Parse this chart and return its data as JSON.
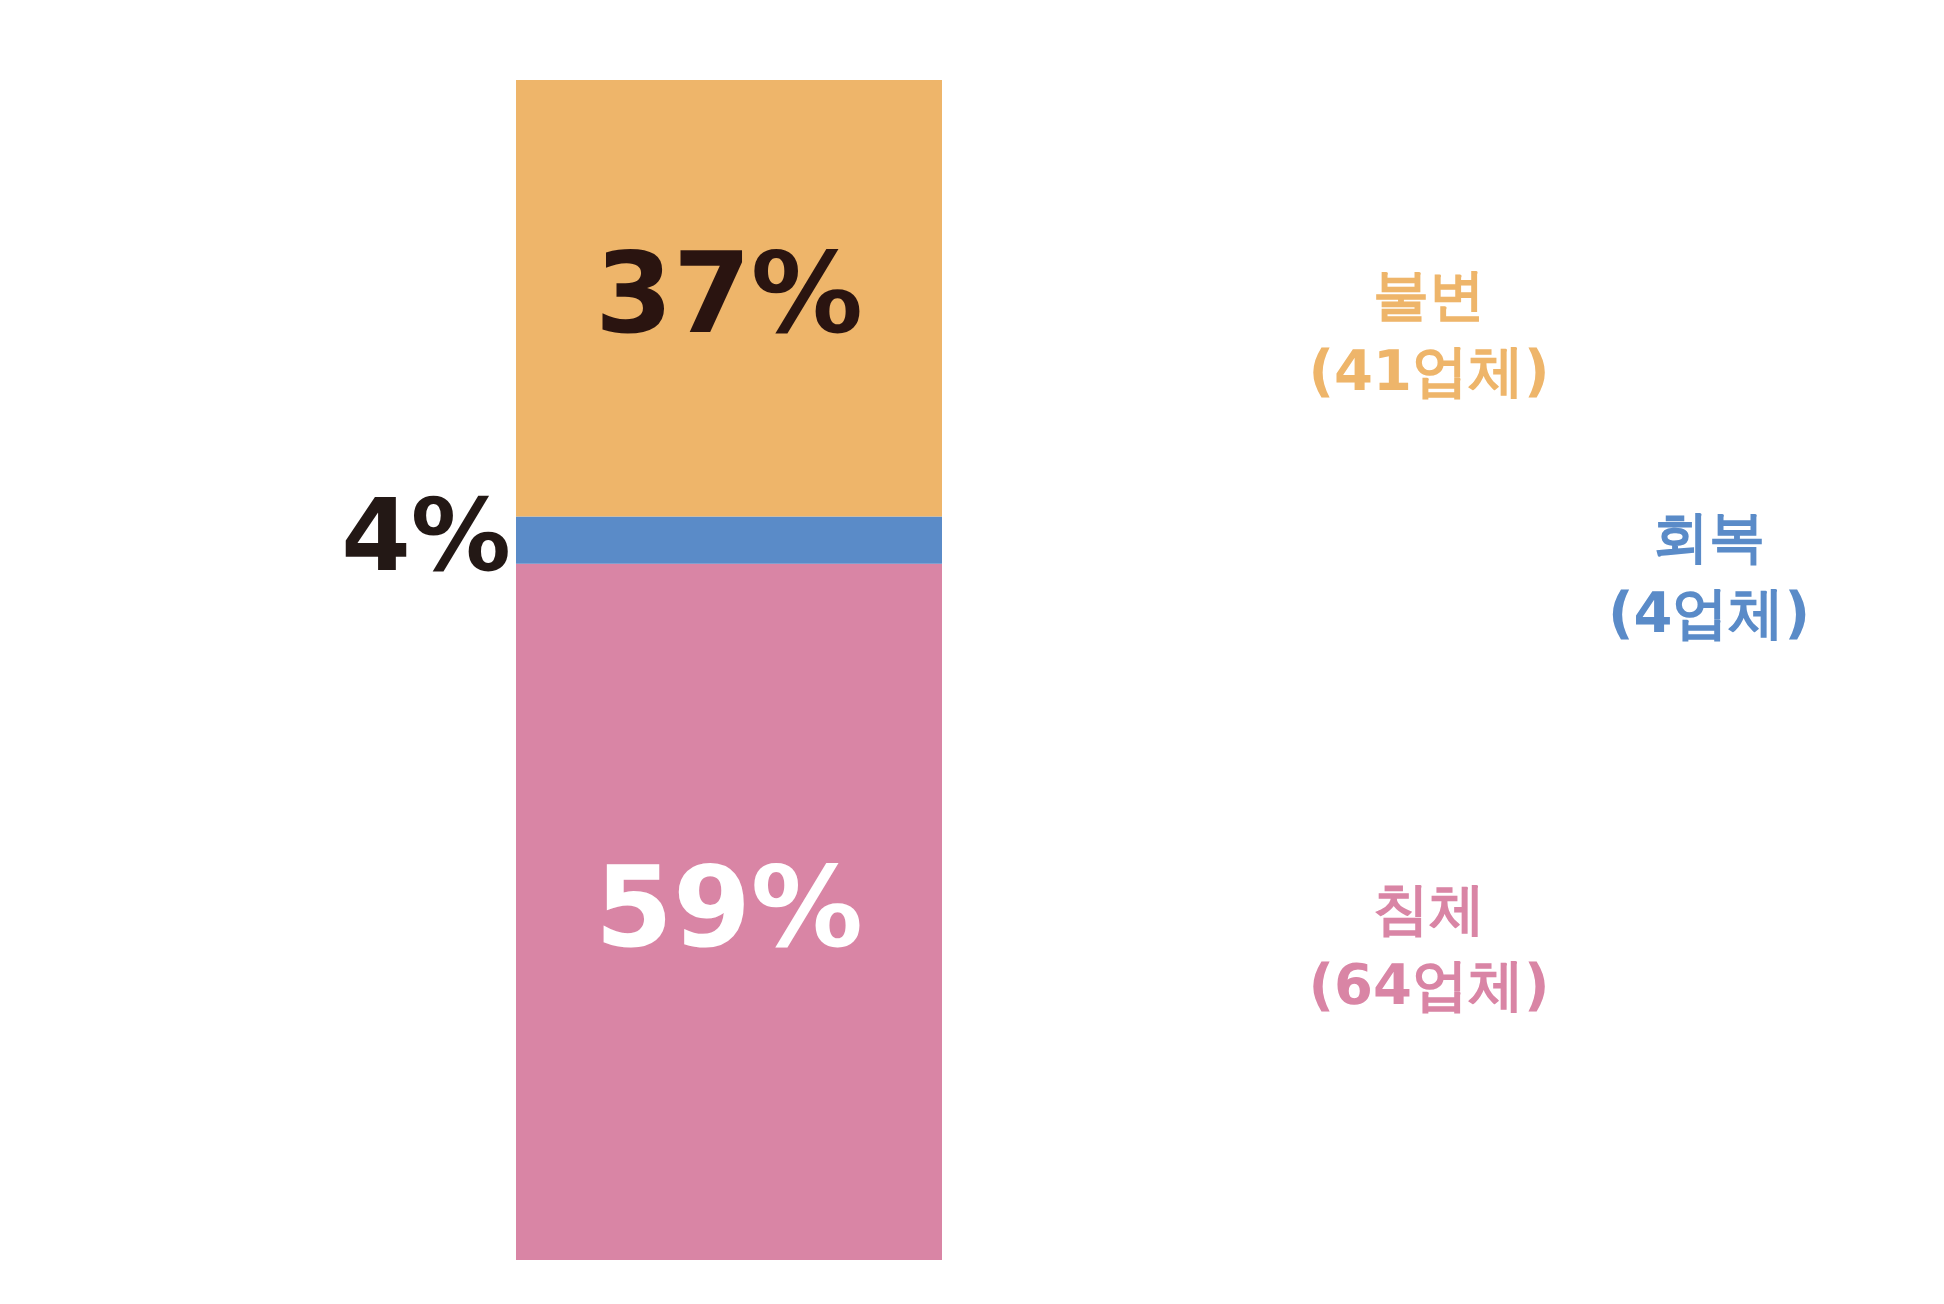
{
  "chart_data": {
    "type": "bar",
    "stacked": true,
    "categories": [
      null
    ],
    "ylim": [
      0,
      100
    ],
    "tick_labels": false,
    "legend": false,
    "series": [
      {
        "name": "침체 (64업체)",
        "color": "#d985a5",
        "values": [
          59
        ],
        "value_labels": [
          "59%"
        ]
      },
      {
        "name": "회복 (4업체)",
        "color": "#5a8bc8",
        "values": [
          4
        ],
        "value_labels": [
          "4%"
        ]
      },
      {
        "name": "불변 (41업체)",
        "color": "#eeb56a",
        "values": [
          37
        ],
        "value_labels": [
          "37%"
        ]
      }
    ]
  }
}
